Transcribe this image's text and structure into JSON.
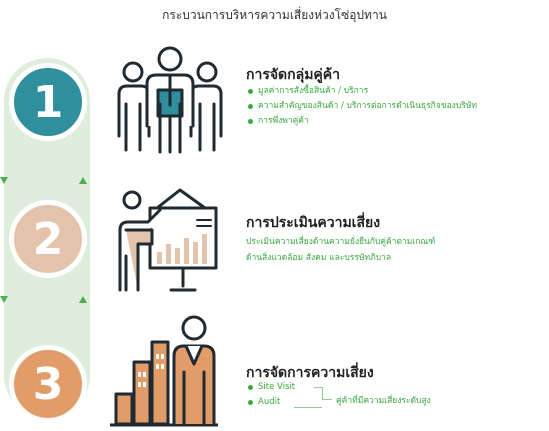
{
  "title": "กระบวนการบริหารความเสี่ยงห่วงโซ่อุปทาน",
  "steps": [
    {
      "number": "1",
      "heading": "การจัดกลุ่มคู่ค้า",
      "bullets": [
        "มูลค่าการสั่งซื้อสินค้า / บริการ",
        "ความสำคัญของสินค้า / บริการต่อการดำเนินธุรกิจของบริษัท",
        "การพึ่งพาคู่ค้า"
      ],
      "color": "#2f8f9d",
      "icon": "people-group-icon"
    },
    {
      "number": "2",
      "heading": "การประเมินความเสี่ยง",
      "description_lines": [
        "ประเมินความเสี่ยงด้านความยั่งยืนกับคู่ค้าตามเกณฑ์",
        "ด้านสิ่งแวดล้อม สังคม และบรรษัทภิบาล"
      ],
      "color": "#e3c3ac",
      "icon": "presenter-chart-icon"
    },
    {
      "number": "3",
      "heading": "การจัดการความเสี่ยง",
      "bullets": [
        "Site Visit",
        "Audit"
      ],
      "bracket_note": "คู่ค้าที่มีความเสี่ยงระดับสูง",
      "color": "#e19c6a",
      "icon": "person-bar-chart-icon"
    }
  ]
}
